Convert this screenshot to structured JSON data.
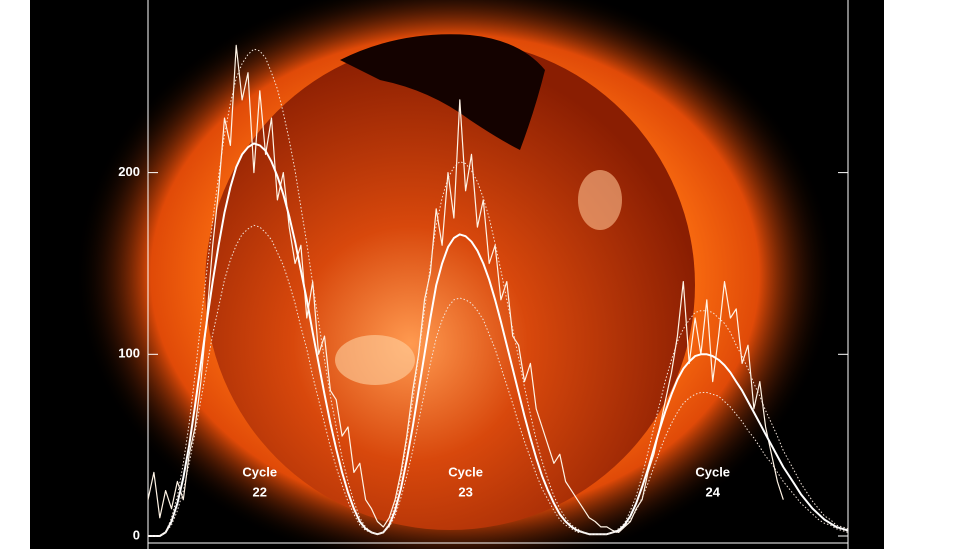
{
  "chart_data": {
    "type": "line",
    "ylim": [
      0,
      295
    ],
    "yticks": [
      0,
      100,
      200
    ],
    "series": [
      {
        "color": "#fff4e6",
        "style": "solid",
        "width": 1.2,
        "values": [
          20,
          35,
          10,
          25,
          15,
          30,
          20,
          45,
          60,
          85,
          120,
          160,
          190,
          230,
          215,
          270,
          240,
          255,
          200,
          245,
          210,
          230,
          185,
          200,
          170,
          150,
          160,
          120,
          140,
          100,
          110,
          80,
          75,
          55,
          60,
          35,
          40,
          20,
          15,
          8,
          5,
          10,
          20,
          35,
          55,
          80,
          100,
          130,
          145,
          180,
          160,
          200,
          175,
          240,
          190,
          210,
          170,
          185,
          150,
          160,
          130,
          140,
          110,
          105,
          85,
          95,
          70,
          60,
          50,
          40,
          45,
          30,
          25,
          20,
          15,
          10,
          8,
          5,
          5,
          3,
          2,
          5,
          8,
          15,
          20,
          35,
          45,
          60,
          75,
          90,
          110,
          140,
          95,
          120,
          100,
          130,
          85,
          110,
          140,
          120,
          125,
          95,
          105,
          70,
          85,
          60,
          45,
          30,
          20,
          null,
          null,
          null,
          null,
          null,
          null,
          null,
          null,
          null,
          null,
          null
        ]
      },
      {
        "color": "#ffffff",
        "style": "solid",
        "width": 2,
        "values": [
          0,
          0,
          0,
          2,
          8,
          18,
          32,
          50,
          72,
          95,
          118,
          140,
          160,
          178,
          192,
          203,
          210,
          214,
          216,
          215,
          212,
          206,
          198,
          188,
          176,
          162,
          146,
          130,
          112,
          95,
          78,
          62,
          48,
          35,
          24,
          15,
          8,
          4,
          2,
          1,
          2,
          6,
          14,
          26,
          42,
          60,
          80,
          100,
          120,
          138,
          150,
          159,
          164,
          166,
          165,
          162,
          157,
          150,
          141,
          130,
          118,
          105,
          92,
          79,
          66,
          54,
          43,
          33,
          25,
          18,
          12,
          8,
          5,
          3,
          2,
          1,
          1,
          1,
          1,
          2,
          3,
          6,
          11,
          18,
          27,
          37,
          48,
          59,
          69,
          78,
          86,
          92,
          96,
          99,
          100,
          100,
          99,
          97,
          94,
          90,
          85,
          80,
          74,
          68,
          62,
          56,
          50,
          44,
          38,
          33,
          28,
          23,
          19,
          15,
          12,
          9,
          7,
          5,
          4,
          3
        ]
      },
      {
        "color": "#f3e6dc",
        "style": "dotted",
        "width": 1,
        "values": [
          0,
          0,
          0,
          2,
          10,
          22,
          40,
          62,
          89,
          118,
          146,
          174,
          198,
          221,
          238,
          252,
          260,
          265,
          268,
          267,
          263,
          255,
          246,
          233,
          218,
          201,
          181,
          161,
          139,
          118,
          97,
          77,
          60,
          43,
          30,
          19,
          10,
          5,
          2,
          1,
          2,
          7,
          17,
          32,
          52,
          74,
          99,
          124,
          149,
          171,
          186,
          197,
          203,
          206,
          205,
          201,
          195,
          186,
          175,
          161,
          146,
          130,
          114,
          98,
          82,
          67,
          53,
          41,
          31,
          22,
          15,
          10,
          6,
          4,
          2,
          1,
          1,
          1,
          1,
          2,
          4,
          7,
          14,
          22,
          33,
          46,
          60,
          73,
          86,
          97,
          107,
          114,
          119,
          123,
          124,
          124,
          123,
          120,
          117,
          112,
          105,
          99,
          92,
          84,
          77,
          69,
          62,
          55,
          47,
          41,
          35,
          29,
          24,
          19,
          15,
          11,
          9,
          6,
          5,
          4
        ]
      },
      {
        "color": "#f3e6dc",
        "style": "dotted",
        "width": 1,
        "values": [
          0,
          0,
          0,
          2,
          6,
          14,
          25,
          40,
          57,
          75,
          93,
          111,
          126,
          141,
          152,
          160,
          166,
          169,
          171,
          170,
          167,
          163,
          156,
          149,
          139,
          128,
          115,
          103,
          88,
          75,
          62,
          49,
          38,
          28,
          19,
          12,
          6,
          3,
          2,
          1,
          2,
          5,
          11,
          21,
          33,
          47,
          63,
          79,
          95,
          109,
          119,
          126,
          130,
          131,
          130,
          128,
          124,
          119,
          111,
          103,
          93,
          83,
          73,
          62,
          52,
          43,
          34,
          26,
          20,
          14,
          9,
          6,
          4,
          2,
          2,
          1,
          1,
          1,
          1,
          2,
          2,
          5,
          9,
          14,
          21,
          29,
          38,
          47,
          55,
          62,
          68,
          73,
          76,
          78,
          79,
          79,
          78,
          77,
          74,
          71,
          67,
          63,
          58,
          54,
          49,
          44,
          40,
          35,
          30,
          26,
          22,
          18,
          15,
          12,
          9,
          7,
          6,
          4,
          3,
          2
        ]
      }
    ],
    "annotations": [
      {
        "lines": [
          "Cycle",
          "22"
        ],
        "index": 19
      },
      {
        "lines": [
          "Cycle",
          "23"
        ],
        "index": 54
      },
      {
        "lines": [
          "Cycle",
          "24"
        ],
        "index": 96
      }
    ]
  }
}
